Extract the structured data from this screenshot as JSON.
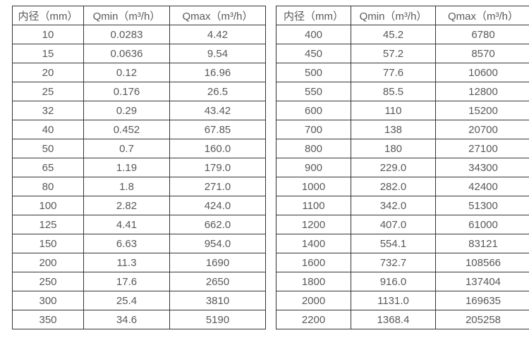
{
  "colors": {
    "background": "#ffffff",
    "border": "#333333",
    "text": "#595959"
  },
  "table_left": {
    "headers": [
      "内径（mm）",
      "Qmin（m³/h）",
      "Qmax（m³/h）"
    ],
    "rows": [
      [
        "10",
        "0.0283",
        "4.42"
      ],
      [
        "15",
        "0.0636",
        "9.54"
      ],
      [
        "20",
        "0.12",
        "16.96"
      ],
      [
        "25",
        "0.176",
        "26.5"
      ],
      [
        "32",
        "0.29",
        "43.42"
      ],
      [
        "40",
        "0.452",
        "67.85"
      ],
      [
        "50",
        "0.7",
        "160.0"
      ],
      [
        "65",
        "1.19",
        "179.0"
      ],
      [
        "80",
        "1.8",
        "271.0"
      ],
      [
        "100",
        "2.82",
        "424.0"
      ],
      [
        "125",
        "4.41",
        "662.0"
      ],
      [
        "150",
        "6.63",
        "954.0"
      ],
      [
        "200",
        "11.3",
        "1690"
      ],
      [
        "250",
        "17.6",
        "2650"
      ],
      [
        "300",
        "25.4",
        "3810"
      ],
      [
        "350",
        "34.6",
        "5190"
      ]
    ]
  },
  "table_right": {
    "headers": [
      "内径（mm）",
      "Qmin（m³/h）",
      "Qmax（m³/h）"
    ],
    "rows": [
      [
        "400",
        "45.2",
        "6780"
      ],
      [
        "450",
        "57.2",
        "8570"
      ],
      [
        "500",
        "77.6",
        "10600"
      ],
      [
        "550",
        "85.5",
        "12800"
      ],
      [
        "600",
        "110",
        "15200"
      ],
      [
        "700",
        "138",
        "20700"
      ],
      [
        "800",
        "180",
        "27100"
      ],
      [
        "900",
        "229.0",
        "34300"
      ],
      [
        "1000",
        "282.0",
        "42400"
      ],
      [
        "1100",
        "342.0",
        "51300"
      ],
      [
        "1200",
        "407.0",
        "61000"
      ],
      [
        "1400",
        "554.1",
        "83121"
      ],
      [
        "1600",
        "732.7",
        "108566"
      ],
      [
        "1800",
        "916.0",
        "137404"
      ],
      [
        "2000",
        "1131.0",
        "169635"
      ],
      [
        "2200",
        "1368.4",
        "205258"
      ]
    ]
  }
}
